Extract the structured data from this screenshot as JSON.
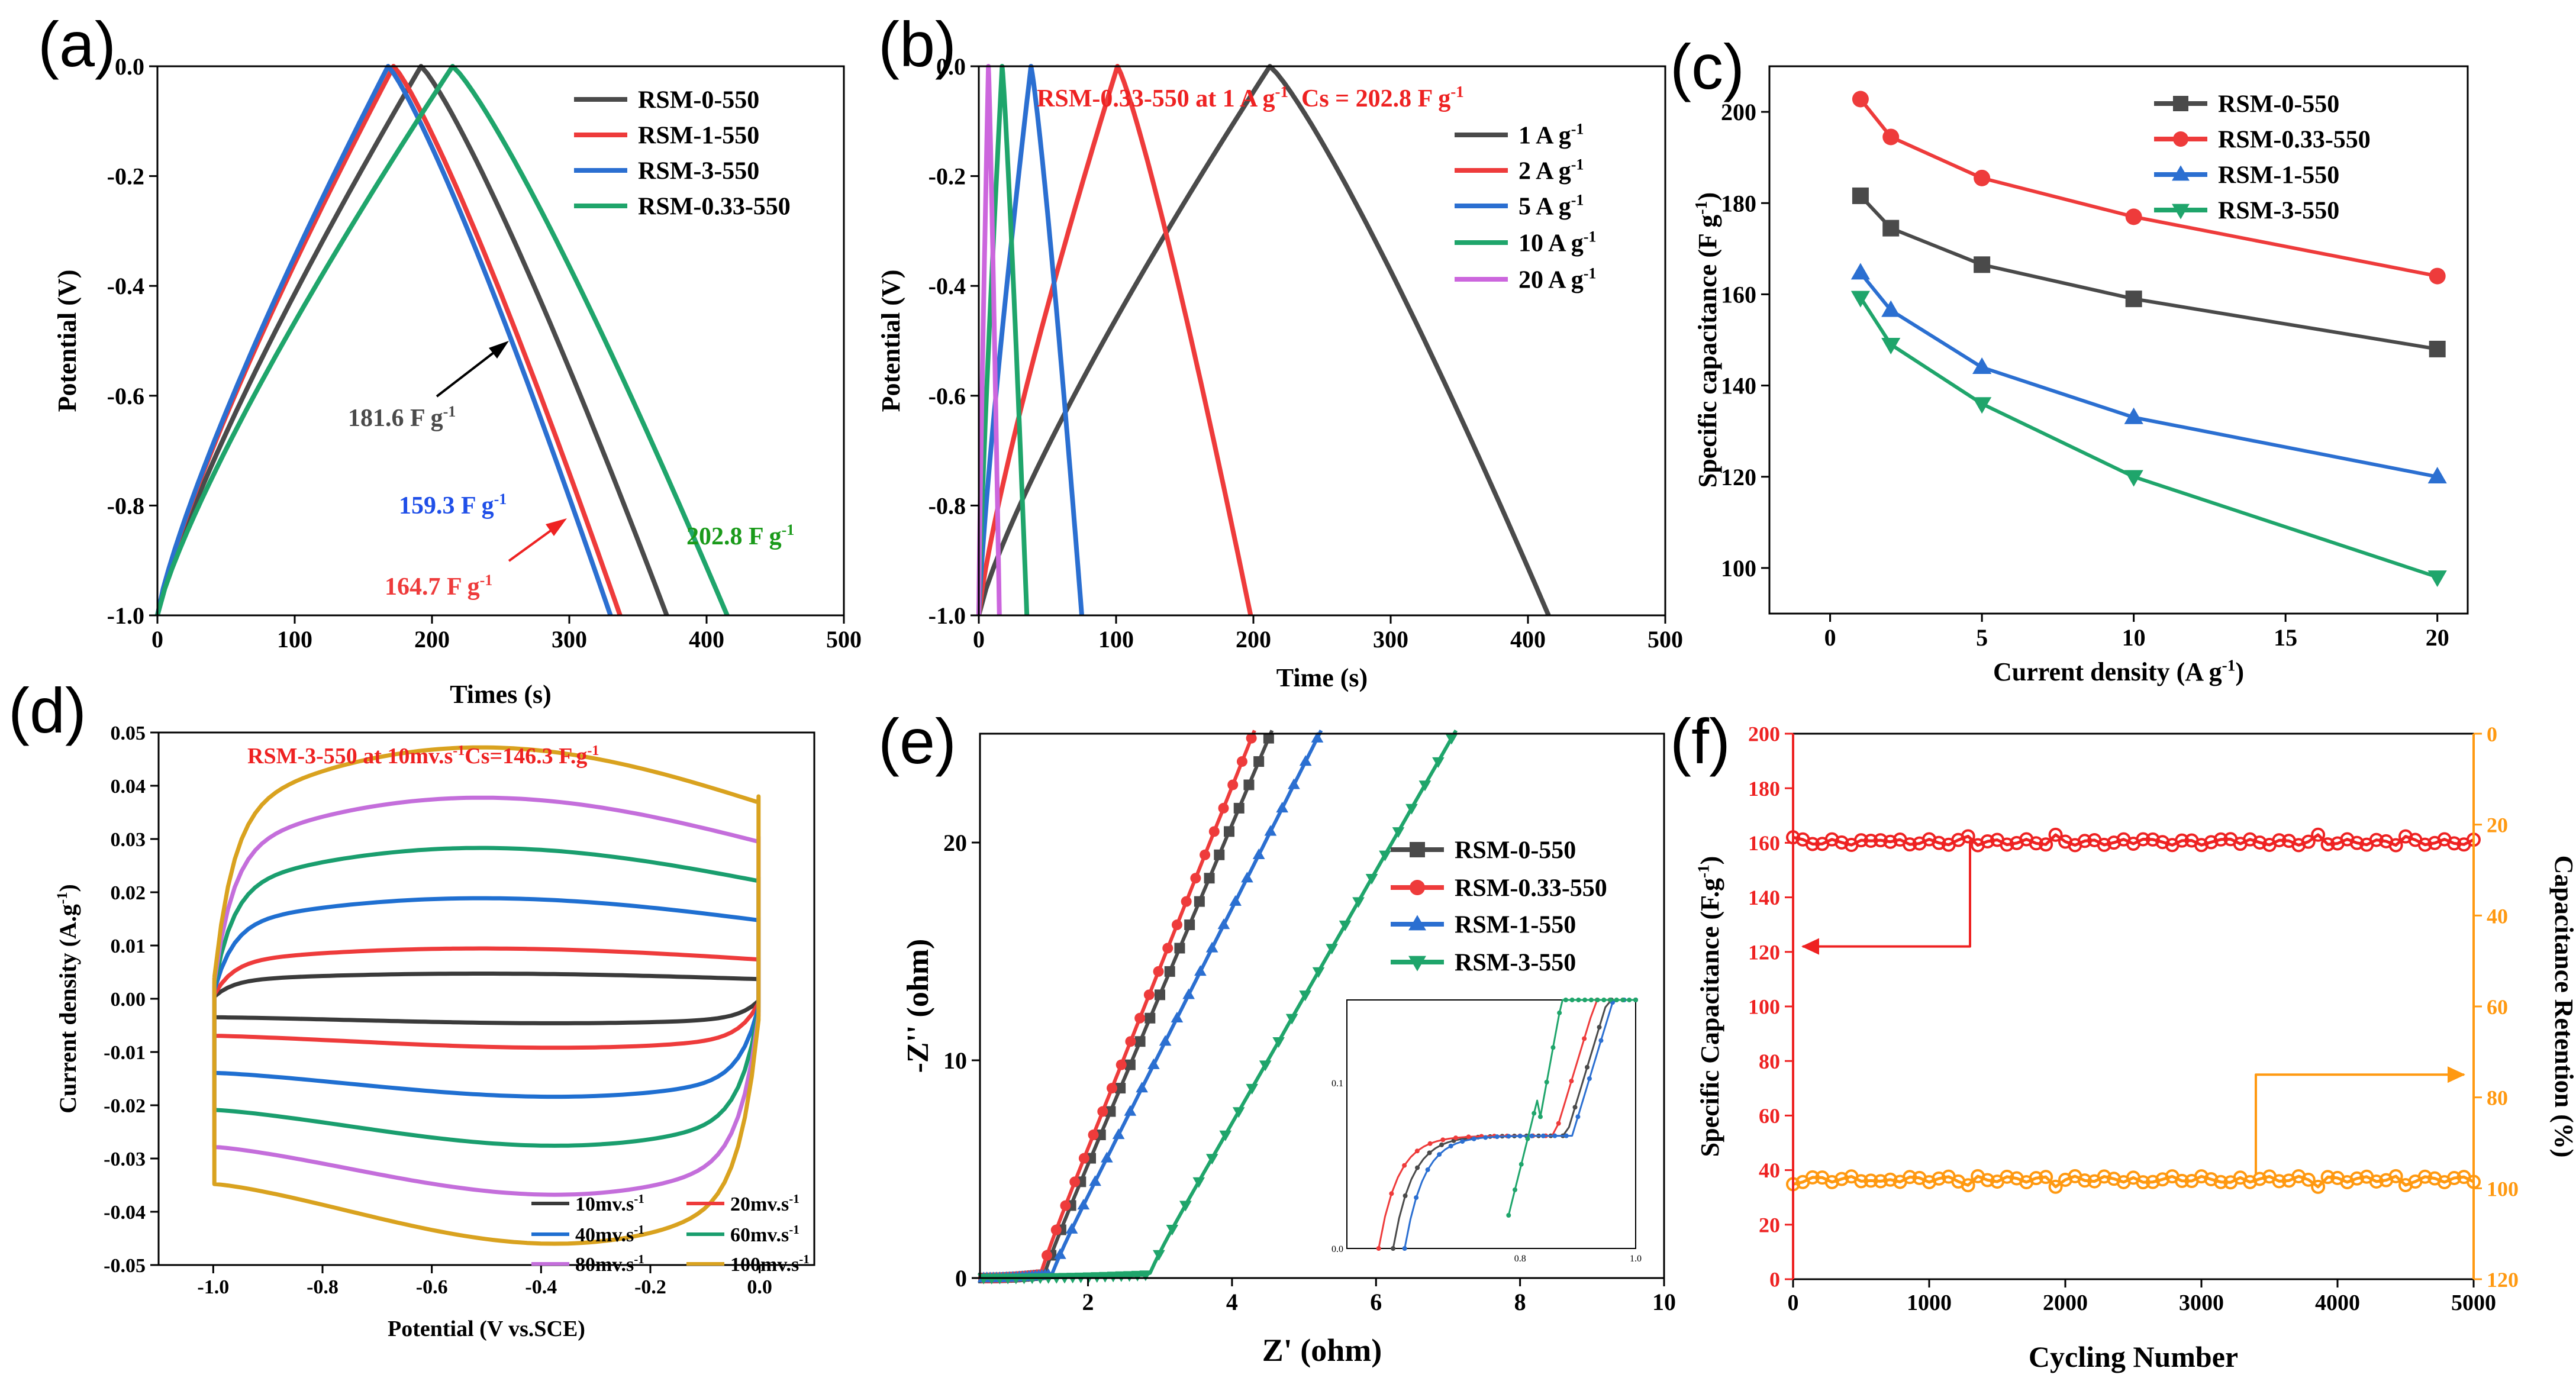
{
  "chart_data": [
    {
      "id": "a",
      "panel_label": "(a)",
      "type": "line",
      "xlabel": "Times (s)",
      "ylabel": "Potential (V)",
      "xlim": [
        0,
        500
      ],
      "ylim": [
        -1.0,
        0.0
      ],
      "xticks": [
        0,
        100,
        200,
        300,
        400,
        500
      ],
      "yticks": [
        -1.0,
        -0.8,
        -0.6,
        -0.4,
        -0.2,
        0.0
      ],
      "series": [
        {
          "name": "RSM-0-550",
          "color": "#4a4a4a",
          "t_peak": 192,
          "t_end": 371,
          "cap_label": "181.6 F g",
          "label_color": "#4a4a4a"
        },
        {
          "name": "RSM-1-550",
          "color": "#ee3b3b",
          "t_peak": 172,
          "t_end": 337,
          "cap_label": "164.7 F g",
          "label_color": "#ee3b3b"
        },
        {
          "name": "RSM-3-550",
          "color": "#2b6fd1",
          "t_peak": 168,
          "t_end": 330,
          "cap_label": "159.3 F g",
          "label_color": "#1f4fe8"
        },
        {
          "name": "RSM-0.33-550",
          "color": "#1fa56b",
          "t_peak": 215,
          "t_end": 415,
          "cap_label": "202.8 F g",
          "label_color": "#1a9a1a"
        }
      ]
    },
    {
      "id": "b",
      "panel_label": "(b)",
      "type": "line",
      "title": "RSM-0.33-550 at 1 A g",
      "title2": "Cs = 202.8 F g",
      "xlabel": "Time (s)",
      "ylabel": "Potential (V)",
      "xlim": [
        0,
        500
      ],
      "ylim": [
        -1.0,
        0.0
      ],
      "xticks": [
        0,
        100,
        200,
        300,
        400,
        500
      ],
      "yticks": [
        -1.0,
        -0.8,
        -0.6,
        -0.4,
        -0.2,
        0.0
      ],
      "series": [
        {
          "name": "1 A g",
          "color": "#4a4a4a",
          "t_peak": 212,
          "t_end": 415
        },
        {
          "name": "2 A g",
          "color": "#ee3b3b",
          "t_peak": 101,
          "t_end": 198
        },
        {
          "name": "5 A g",
          "color": "#2b6fd1",
          "t_peak": 38,
          "t_end": 75
        },
        {
          "name": "10 A g",
          "color": "#1fa56b",
          "t_peak": 17,
          "t_end": 35
        },
        {
          "name": "20 A g",
          "color": "#cc66dd",
          "t_peak": 7,
          "t_end": 15
        }
      ]
    },
    {
      "id": "c",
      "panel_label": "(c)",
      "type": "line",
      "xlabel": "Current density (A g",
      "ylabel": "Specific capacitance (F g",
      "xlim": [
        -2,
        21
      ],
      "ylim": [
        90,
        210
      ],
      "xticks": [
        0,
        5,
        10,
        15,
        20
      ],
      "yticks": [
        100,
        120,
        140,
        160,
        180,
        200
      ],
      "x": [
        1,
        2,
        5,
        10,
        20
      ],
      "series": [
        {
          "name": "RSM-0-550",
          "color": "#4a4a4a",
          "marker": "square",
          "values": [
            181.6,
            174.5,
            166.5,
            159,
            148
          ]
        },
        {
          "name": "RSM-0.33-550",
          "color": "#ee3b3b",
          "marker": "circle",
          "values": [
            202.8,
            194.5,
            185.5,
            177,
            164
          ]
        },
        {
          "name": "RSM-1-550",
          "color": "#2b6fd1",
          "marker": "triangle-up",
          "values": [
            164.7,
            156.5,
            144,
            133,
            120
          ]
        },
        {
          "name": "RSM-3-550",
          "color": "#1fa56b",
          "marker": "triangle-down",
          "values": [
            159.3,
            149,
            136,
            120,
            98
          ]
        }
      ]
    },
    {
      "id": "d",
      "panel_label": "(d)",
      "type": "line",
      "title": "RSM-3-550 at 10mv.s",
      "title2": "Cs=146.3 F.g",
      "xlabel": "Potential (V vs.SCE)",
      "ylabel": "Current density (A.g",
      "xlim": [
        -1.1,
        0.1
      ],
      "ylim": [
        -0.05,
        0.05
      ],
      "xticks": [
        -1.0,
        -0.8,
        -0.6,
        -0.4,
        -0.2,
        0.0
      ],
      "yticks": [
        -0.05,
        -0.04,
        -0.03,
        -0.02,
        -0.01,
        0.0,
        0.01,
        0.02,
        0.03,
        0.04,
        0.05
      ],
      "series": [
        {
          "name": "10mv.s",
          "color": "#3a3a3a",
          "scale": 0.1
        },
        {
          "name": "20mv.s",
          "color": "#ee3b3b",
          "scale": 0.2
        },
        {
          "name": "40mv.s",
          "color": "#1f6fd1",
          "scale": 0.4
        },
        {
          "name": "60mv.s",
          "color": "#1a9e6e",
          "scale": 0.6
        },
        {
          "name": "80mv.s",
          "color": "#c46edb",
          "scale": 0.8
        },
        {
          "name": "100mv.s",
          "color": "#d9a21f",
          "scale": 1.0
        }
      ]
    },
    {
      "id": "e",
      "panel_label": "(e)",
      "type": "scatter",
      "xlabel": "Z' (ohm)",
      "ylabel": "-Z'' (ohm)",
      "xlim": [
        0.5,
        10
      ],
      "ylim": [
        0,
        25
      ],
      "xticks": [
        2,
        4,
        6,
        8,
        10
      ],
      "yticks": [
        0,
        10,
        20
      ],
      "series": [
        {
          "name": "RSM-0-550",
          "color": "#4a4a4a",
          "marker": "square",
          "x0": 1.35,
          "slope": 7.8
        },
        {
          "name": "RSM-0.33-550",
          "color": "#ee3b3b",
          "marker": "circle",
          "x0": 1.3,
          "slope": 8.3
        },
        {
          "name": "RSM-1-550",
          "color": "#2b6fd1",
          "marker": "triangle-up",
          "x0": 1.45,
          "slope": 6.6
        },
        {
          "name": "RSM-3-550",
          "color": "#1fa56b",
          "marker": "triangle-down",
          "x0": 2.8,
          "slope": 5.8
        }
      ],
      "inset": {
        "xlim": [
          0.5,
          1.0
        ],
        "ylim": [
          0,
          0.15
        ],
        "xticks": [
          0.8,
          1.0
        ],
        "yticks": [
          0.0,
          0.1
        ]
      }
    },
    {
      "id": "f",
      "panel_label": "(f)",
      "type": "line",
      "xlabel": "Cycling Number",
      "ylabel": "Specific Capacitance (F.g",
      "y2label": "Capacitance Retention (%)",
      "xlim": [
        0,
        5000
      ],
      "ylim": [
        0,
        200
      ],
      "y2lim": [
        0,
        120
      ],
      "xticks": [
        0,
        1000,
        2000,
        3000,
        4000,
        5000
      ],
      "yticks": [
        0,
        20,
        40,
        60,
        80,
        100,
        120,
        140,
        160,
        180,
        200
      ],
      "y2ticks": [
        0,
        20,
        40,
        60,
        80,
        100,
        120
      ],
      "series": [
        {
          "name": "Specific Capacitance",
          "color": "#ee2222",
          "axis": "left",
          "mean": 160.2,
          "noise": 1.8
        },
        {
          "name": "Capacitance Retention",
          "color": "#ff9911",
          "axis": "right",
          "mean": 98.0,
          "noise": 1.1
        }
      ]
    }
  ]
}
